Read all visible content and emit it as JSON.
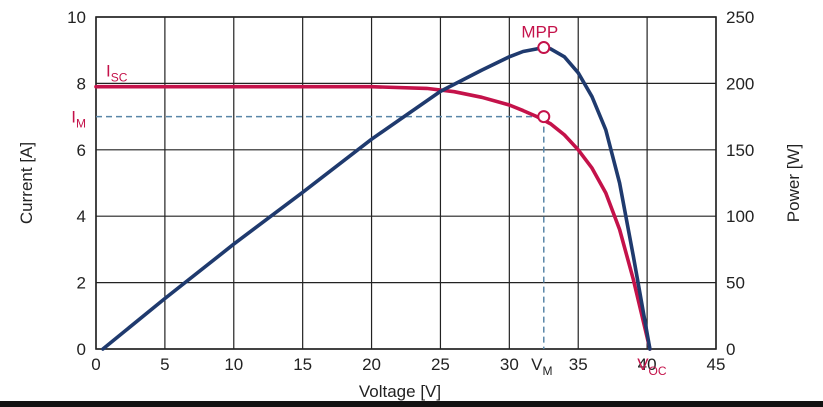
{
  "chart_data": {
    "type": "line",
    "xlabel": "Voltage [V]",
    "ylabel_left": "Current [A]",
    "ylabel_right": "Power [W]",
    "xlim": [
      0,
      45
    ],
    "ylim_left": [
      0,
      10
    ],
    "ylim_right": [
      0,
      250
    ],
    "x_ticks": [
      "0",
      "5",
      "10",
      "15",
      "20",
      "25",
      "30",
      "35",
      "40",
      "45"
    ],
    "y_left_ticks": [
      "0",
      "2",
      "4",
      "6",
      "8",
      "10"
    ],
    "y_right_ticks": [
      "0",
      "50",
      "100",
      "150",
      "200",
      "250"
    ],
    "grid": true,
    "colors": {
      "current": "#c4124a",
      "power": "#1f3a6e",
      "guide": "#5a86a8",
      "grid": "#222222"
    },
    "series": [
      {
        "axis": "left",
        "x": [
          0,
          5,
          10,
          15,
          20,
          24,
          26,
          28,
          30,
          31,
          32,
          33,
          34,
          35,
          36,
          37,
          38,
          39,
          40.2
        ],
        "y": [
          7.9,
          7.9,
          7.9,
          7.9,
          7.9,
          7.85,
          7.75,
          7.58,
          7.35,
          7.18,
          7.0,
          6.78,
          6.45,
          6.0,
          5.45,
          4.7,
          3.6,
          2.1,
          0
        ]
      },
      {
        "axis": "right",
        "x": [
          0.5,
          5,
          10,
          15,
          20,
          25,
          28,
          30,
          31,
          32,
          32.5,
          33,
          34,
          35,
          36,
          37,
          38,
          39,
          40.2
        ],
        "y": [
          0,
          38,
          79,
          118,
          158,
          194,
          210,
          220,
          224,
          226,
          227,
          226,
          220,
          208,
          190,
          165,
          125,
          70,
          0
        ]
      }
    ],
    "annotations": {
      "isc": {
        "main": "I",
        "sub": "SC",
        "value": 7.9
      },
      "im": {
        "main": "I",
        "sub": "M",
        "value": 7.0
      },
      "vm": {
        "main": "V",
        "sub": "M",
        "value": 32.5
      },
      "voc": {
        "main": "V",
        "sub": "OC",
        "value": 40.2
      },
      "mpp": {
        "label": "MPP",
        "voltage": 32.5,
        "power": 227
      }
    }
  }
}
